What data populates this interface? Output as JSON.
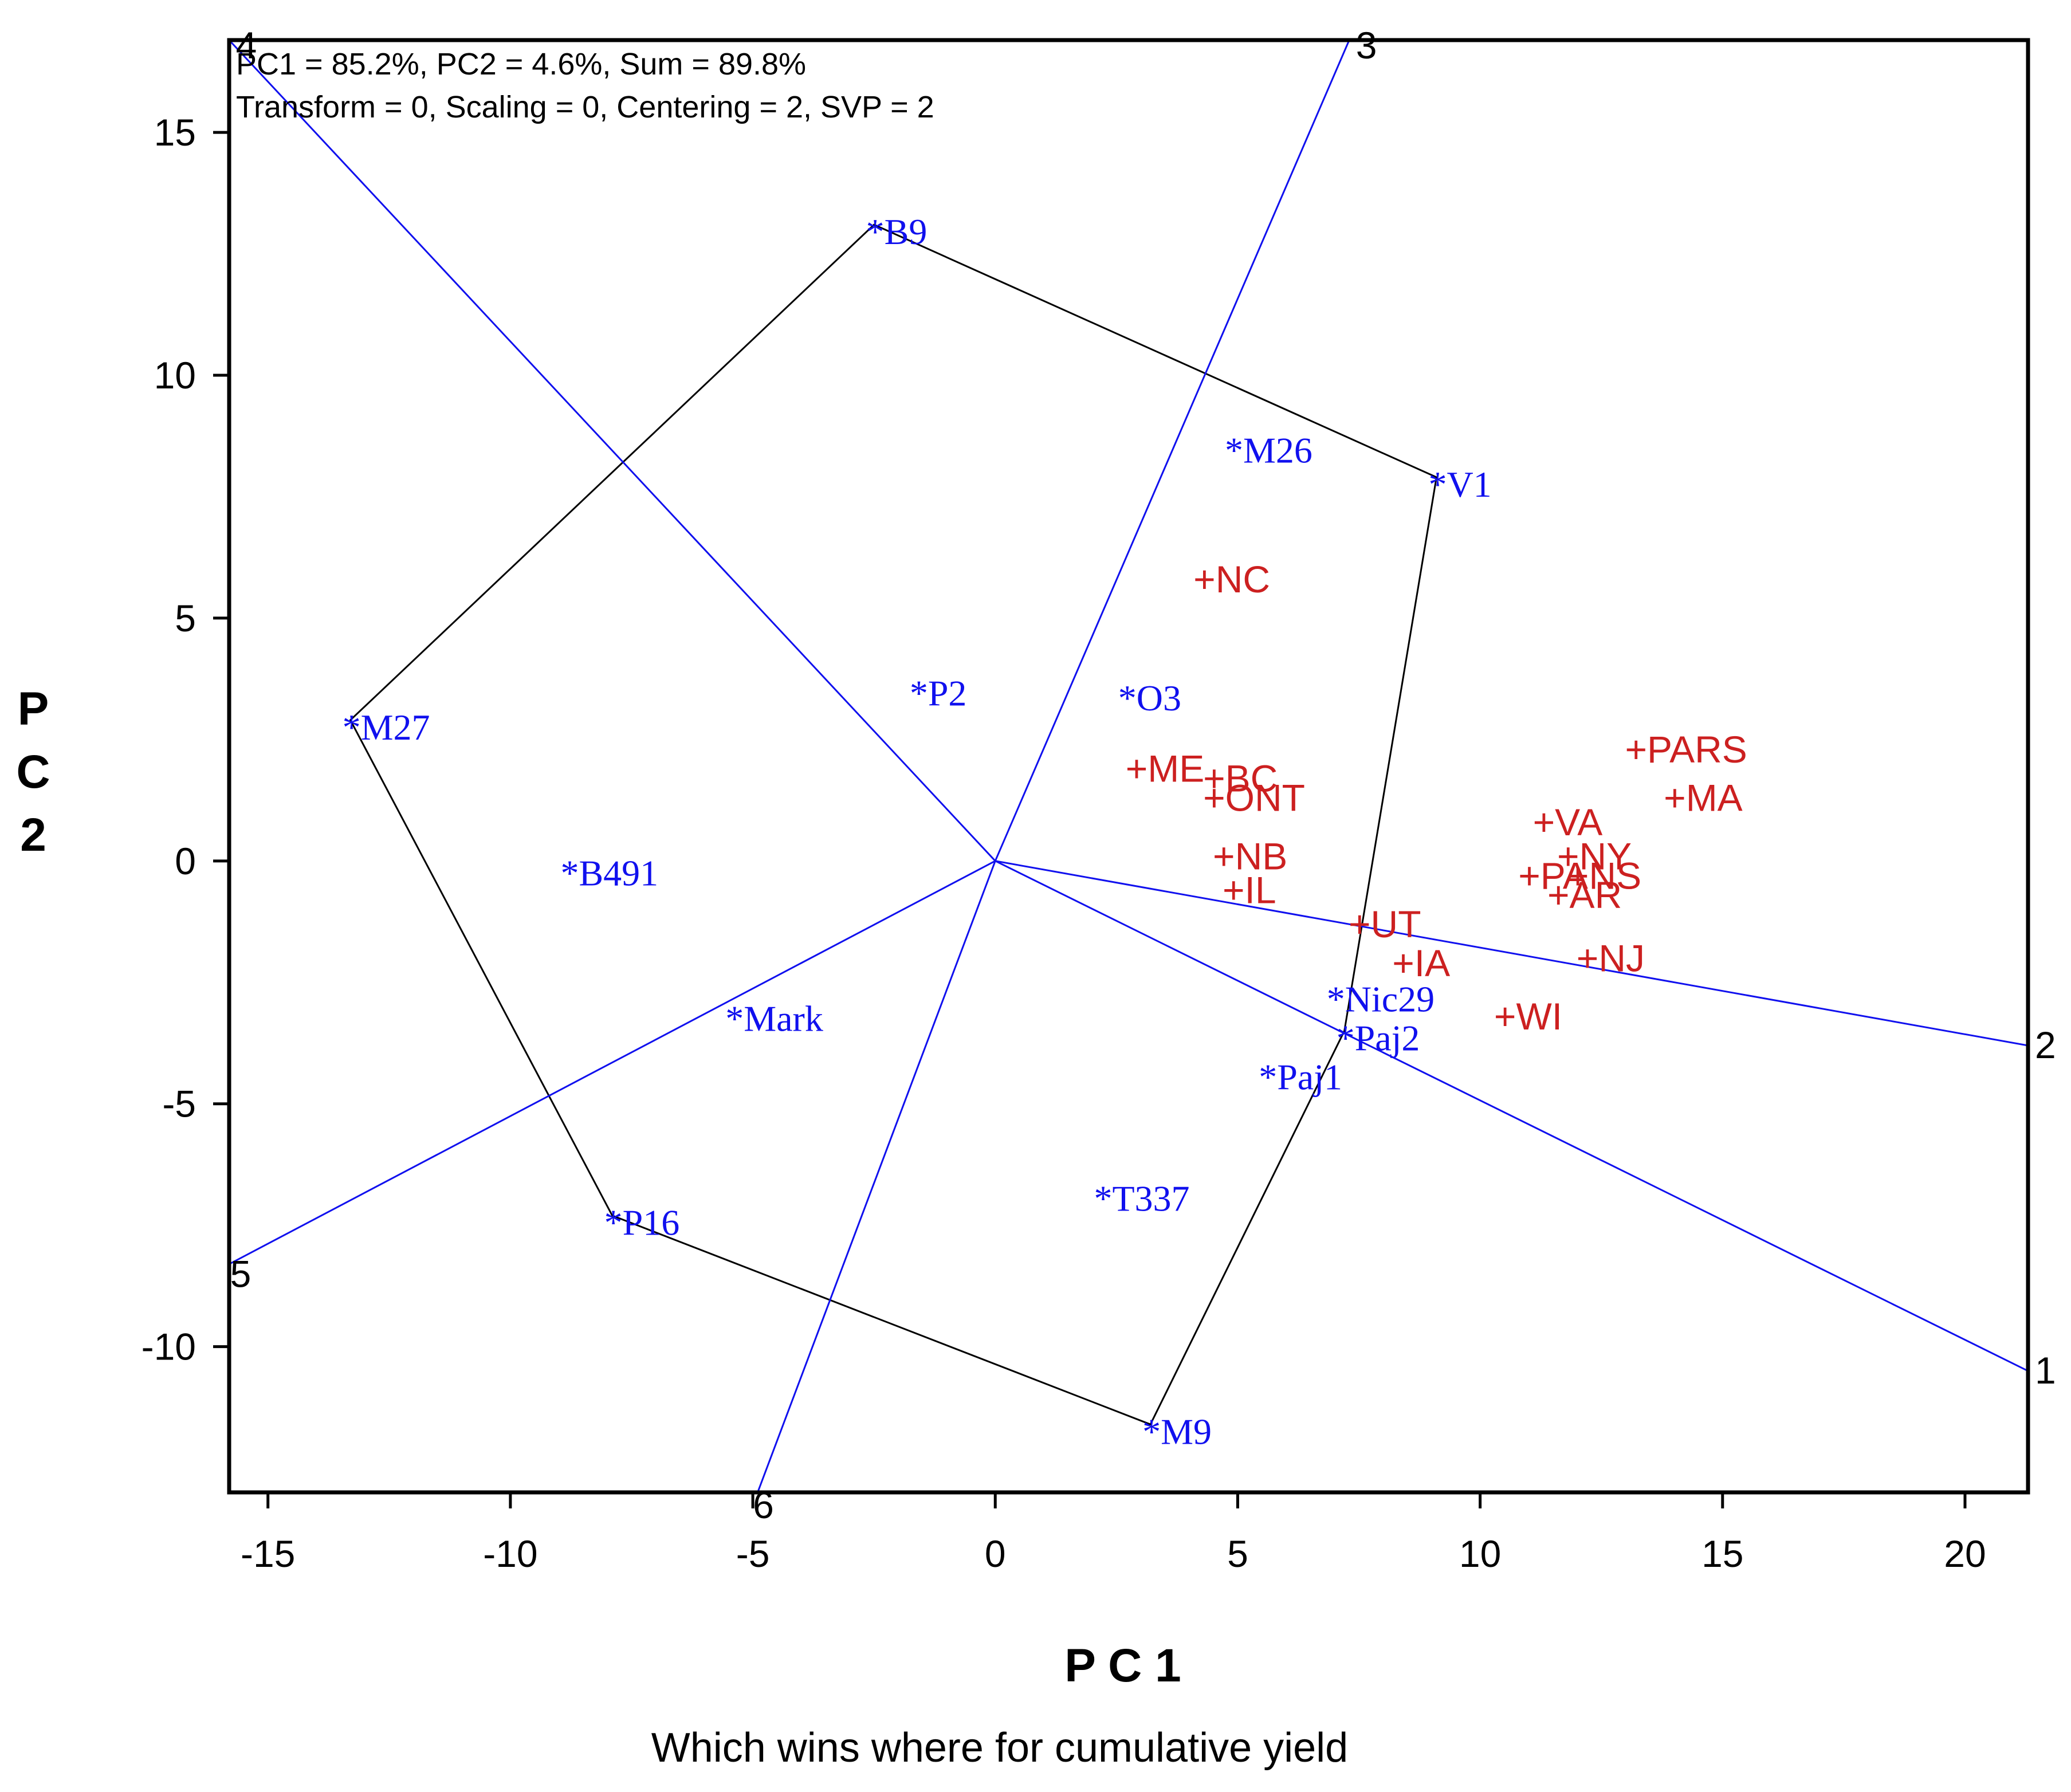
{
  "chart_data": {
    "type": "scatter",
    "title": "Which wins where for cumulative yield",
    "xlabel": "P C 1",
    "ylabel": "P C 2",
    "xlim": [
      -15.8,
      21.3
    ],
    "ylim": [
      -13.0,
      16.9
    ],
    "xticks": [
      -15,
      -10,
      -5,
      0,
      5,
      10,
      15,
      20
    ],
    "yticks": [
      -10,
      -5,
      0,
      5,
      10,
      15
    ],
    "grid": false,
    "info_lines": [
      "PC1 = 85.2%, PC2 = 4.6%, Sum = 89.8%",
      "Transform = 0, Scaling = 0, Centering = 2, SVP = 2"
    ],
    "colors": {
      "genotype": "#1010ee",
      "environment": "#cc2020",
      "hull": "#000000",
      "sector": "#1010ee",
      "axis": "#000000"
    },
    "genotypes": [
      {
        "name": "B9",
        "x": -2.5,
        "y": 13.1
      },
      {
        "name": "M26",
        "x": 4.9,
        "y": 8.6
      },
      {
        "name": "V1",
        "x": 9.1,
        "y": 7.9
      },
      {
        "name": "P2",
        "x": -1.6,
        "y": 3.6
      },
      {
        "name": "O3",
        "x": 2.7,
        "y": 3.5
      },
      {
        "name": "M27",
        "x": -13.3,
        "y": 2.9
      },
      {
        "name": "B491",
        "x": -8.8,
        "y": -0.1
      },
      {
        "name": "Mark",
        "x": -5.4,
        "y": -3.1
      },
      {
        "name": "Nic29",
        "x": 7.0,
        "y": -2.7
      },
      {
        "name": "Paj2",
        "x": 7.2,
        "y": -3.5
      },
      {
        "name": "Paj1",
        "x": 5.6,
        "y": -4.3
      },
      {
        "name": "T337",
        "x": 2.2,
        "y": -6.8
      },
      {
        "name": "P16",
        "x": -7.9,
        "y": -7.3
      },
      {
        "name": "M9",
        "x": 3.2,
        "y": -11.6
      }
    ],
    "environments": [
      {
        "name": "NC",
        "x": 4.3,
        "y": 5.8
      },
      {
        "name": "PARS",
        "x": 13.2,
        "y": 2.3
      },
      {
        "name": "MA",
        "x": 14.0,
        "y": 1.3
      },
      {
        "name": "ME",
        "x": 2.9,
        "y": 1.9
      },
      {
        "name": "BC",
        "x": 4.5,
        "y": 1.7
      },
      {
        "name": "ONT",
        "x": 4.5,
        "y": 1.3
      },
      {
        "name": "VA",
        "x": 11.3,
        "y": 0.8
      },
      {
        "name": "NY",
        "x": 11.8,
        "y": 0.1
      },
      {
        "name": "NB",
        "x": 4.7,
        "y": 0.1
      },
      {
        "name": "PA",
        "x": 11.0,
        "y": -0.3
      },
      {
        "name": "NS",
        "x": 12.0,
        "y": -0.3
      },
      {
        "name": "AR",
        "x": 11.6,
        "y": -0.7
      },
      {
        "name": "IL",
        "x": 4.9,
        "y": -0.6
      },
      {
        "name": "UT",
        "x": 7.5,
        "y": -1.3
      },
      {
        "name": "IA",
        "x": 8.4,
        "y": -2.1
      },
      {
        "name": "NJ",
        "x": 12.2,
        "y": -2.0
      },
      {
        "name": "WI",
        "x": 10.5,
        "y": -3.2
      }
    ],
    "hull": [
      "B9",
      "V1",
      "Paj2",
      "M9",
      "P16",
      "M27"
    ],
    "sector_rays": [
      {
        "label": "1",
        "x": 21.3,
        "y": -10.5
      },
      {
        "label": "2",
        "x": 21.3,
        "y": -3.8
      },
      {
        "label": "3",
        "x": 7.3,
        "y": 16.9
      },
      {
        "label": "4",
        "x": -15.8,
        "y": 16.9
      },
      {
        "label": "5",
        "x": -15.8,
        "y": -8.3
      },
      {
        "label": "6",
        "x": -4.9,
        "y": -13.0
      }
    ]
  }
}
